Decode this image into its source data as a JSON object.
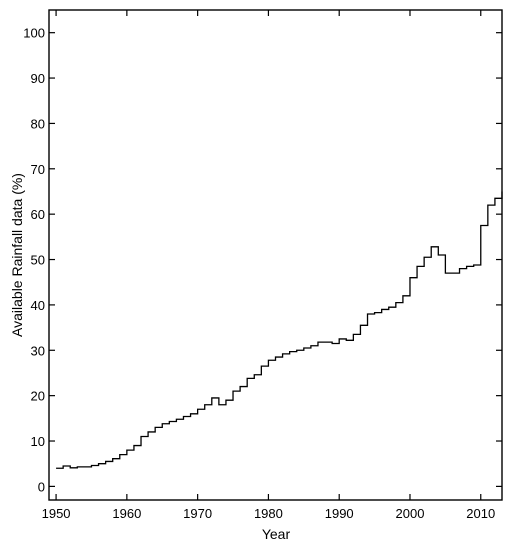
{
  "chart_data": {
    "type": "line",
    "step": true,
    "xlabel": "Year",
    "ylabel": "Available Rainfall data (%)",
    "xlim": [
      1949,
      2013
    ],
    "ylim": [
      -3,
      105
    ],
    "x_ticks": [
      1950,
      1960,
      1970,
      1980,
      1990,
      2000,
      2010
    ],
    "y_ticks": [
      0,
      10,
      20,
      30,
      40,
      50,
      60,
      70,
      80,
      90,
      100
    ],
    "grid": false,
    "line_color": "#000000",
    "series": [
      {
        "x": [
          1950,
          1951,
          1952,
          1953,
          1954,
          1955,
          1956,
          1957,
          1958,
          1959,
          1960,
          1961,
          1962,
          1963,
          1964,
          1965,
          1966,
          1967,
          1968,
          1969,
          1970,
          1971,
          1972,
          1973,
          1974,
          1975,
          1976,
          1977,
          1978,
          1979,
          1980,
          1981,
          1982,
          1983,
          1984,
          1985,
          1986,
          1987,
          1988,
          1989,
          1990,
          1991,
          1992,
          1993,
          1994,
          1995,
          1996,
          1997,
          1998,
          1999,
          2000,
          2001,
          2002,
          2003,
          2004,
          2005,
          2006,
          2007,
          2008,
          2009,
          2010,
          2011,
          2012,
          2013
        ],
        "values": [
          4.0,
          4.5,
          4.1,
          4.3,
          4.3,
          4.6,
          5.0,
          5.5,
          6.1,
          7.0,
          8.0,
          9.0,
          11.0,
          12.0,
          13.0,
          13.8,
          14.3,
          14.8,
          15.4,
          16.0,
          17.0,
          18.0,
          19.5,
          18.0,
          19.0,
          21.0,
          22.0,
          23.8,
          24.6,
          26.5,
          27.8,
          28.5,
          29.2,
          29.7,
          30.0,
          30.5,
          31.0,
          31.8,
          31.8,
          31.5,
          32.5,
          32.2,
          33.5,
          35.5,
          38.0,
          38.3,
          39.0,
          39.5,
          40.5,
          42.0,
          46.0,
          48.5,
          50.5,
          52.8,
          51.0,
          47.0,
          47.0,
          48.0,
          48.5,
          48.8,
          57.5,
          62.0,
          63.5,
          65.0
        ]
      }
    ]
  }
}
